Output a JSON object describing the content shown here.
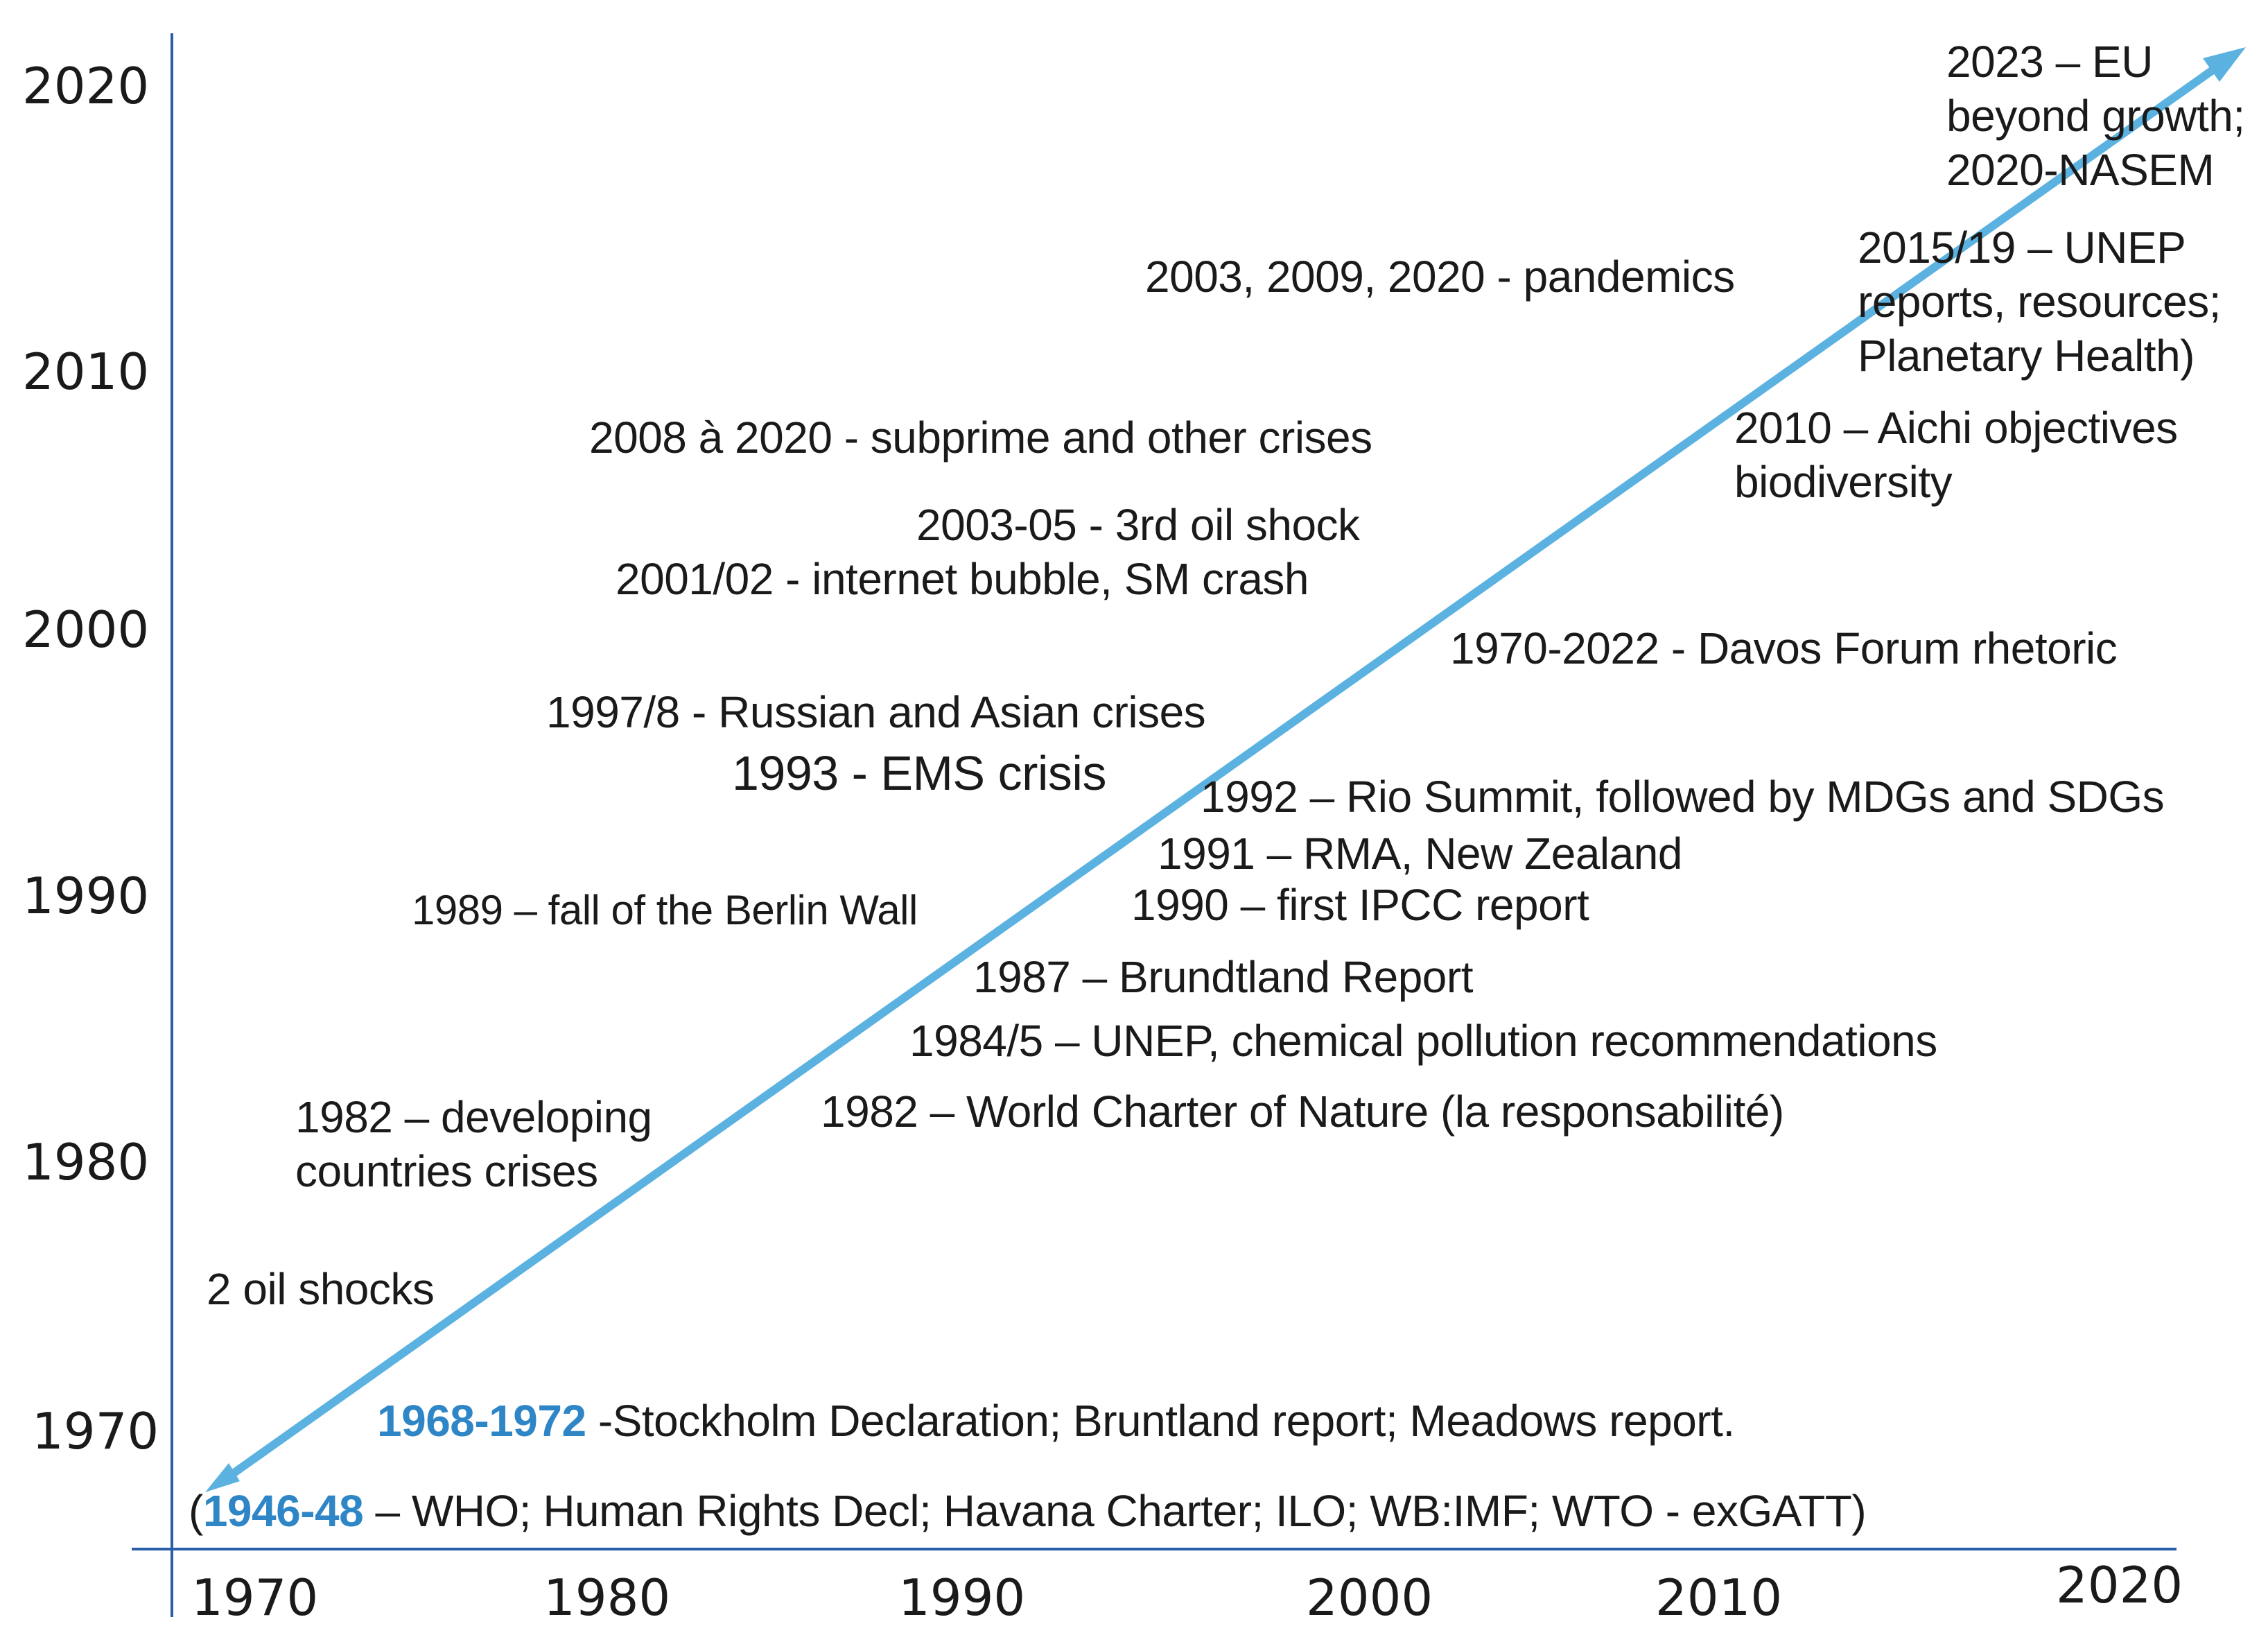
{
  "colors": {
    "arrow": "#5bb2e0",
    "axis": "#2b5ea8",
    "highlight": "#2f86c6",
    "text": "#1a1a1a"
  },
  "y_axis_labels": [
    "2020",
    "2010",
    "2000",
    "1990",
    "1980",
    "1970"
  ],
  "x_axis_labels": [
    "1970",
    "1980",
    "1990",
    "2000",
    "2010",
    "2020"
  ],
  "events": {
    "eu_beyond_growth": [
      "2023 – EU",
      "beyond growth;",
      "2020-NASEM"
    ],
    "pandemics": "2003, 2009, 2020 - pandemics",
    "unep_reports": [
      "2015/19 – UNEP",
      "reports, resources;",
      "Planetary Health)"
    ],
    "subprime": "2008 à 2020 - subprime and other crises",
    "aichi": [
      "2010 – Aichi objectives",
      "biodiversity"
    ],
    "oil_shock_3": "2003-05 -  3rd oil shock",
    "internet_bubble": "2001/02 - internet bubble, SM crash",
    "davos": "1970-2022 - Davos Forum rhetoric",
    "russian_asian": "1997/8 - Russian and Asian crises",
    "ems_crisis": "1993 - EMS crisis",
    "rio_summit": "1992 – Rio Summit, followed by MDGs and SDGs",
    "rma_nz": "1991 – RMA, New Zealand",
    "ipcc": "1990 – first IPCC report",
    "berlin_wall": "1989 – fall of the Berlin Wall",
    "brundtland": "1987 – Brundtland Report",
    "unep_chemical": "1984/5 – UNEP, chemical pollution recommendations",
    "world_charter": "1982 – World Charter of Nature (la responsabilité)",
    "developing_crises": [
      "1982 – developing",
      "countries crises"
    ],
    "oil_shocks_2": "2 oil shocks",
    "stockholm": {
      "highlight": "1968-1972",
      "rest": " -Stockholm Declaration; Bruntland report; Meadows report."
    },
    "postwar": {
      "prefix": "(",
      "highlight": "1946-48",
      "rest": " – WHO; Human Rights Decl; Havana Charter; ILO; WB:IMF; WTO - exGATT)"
    }
  }
}
